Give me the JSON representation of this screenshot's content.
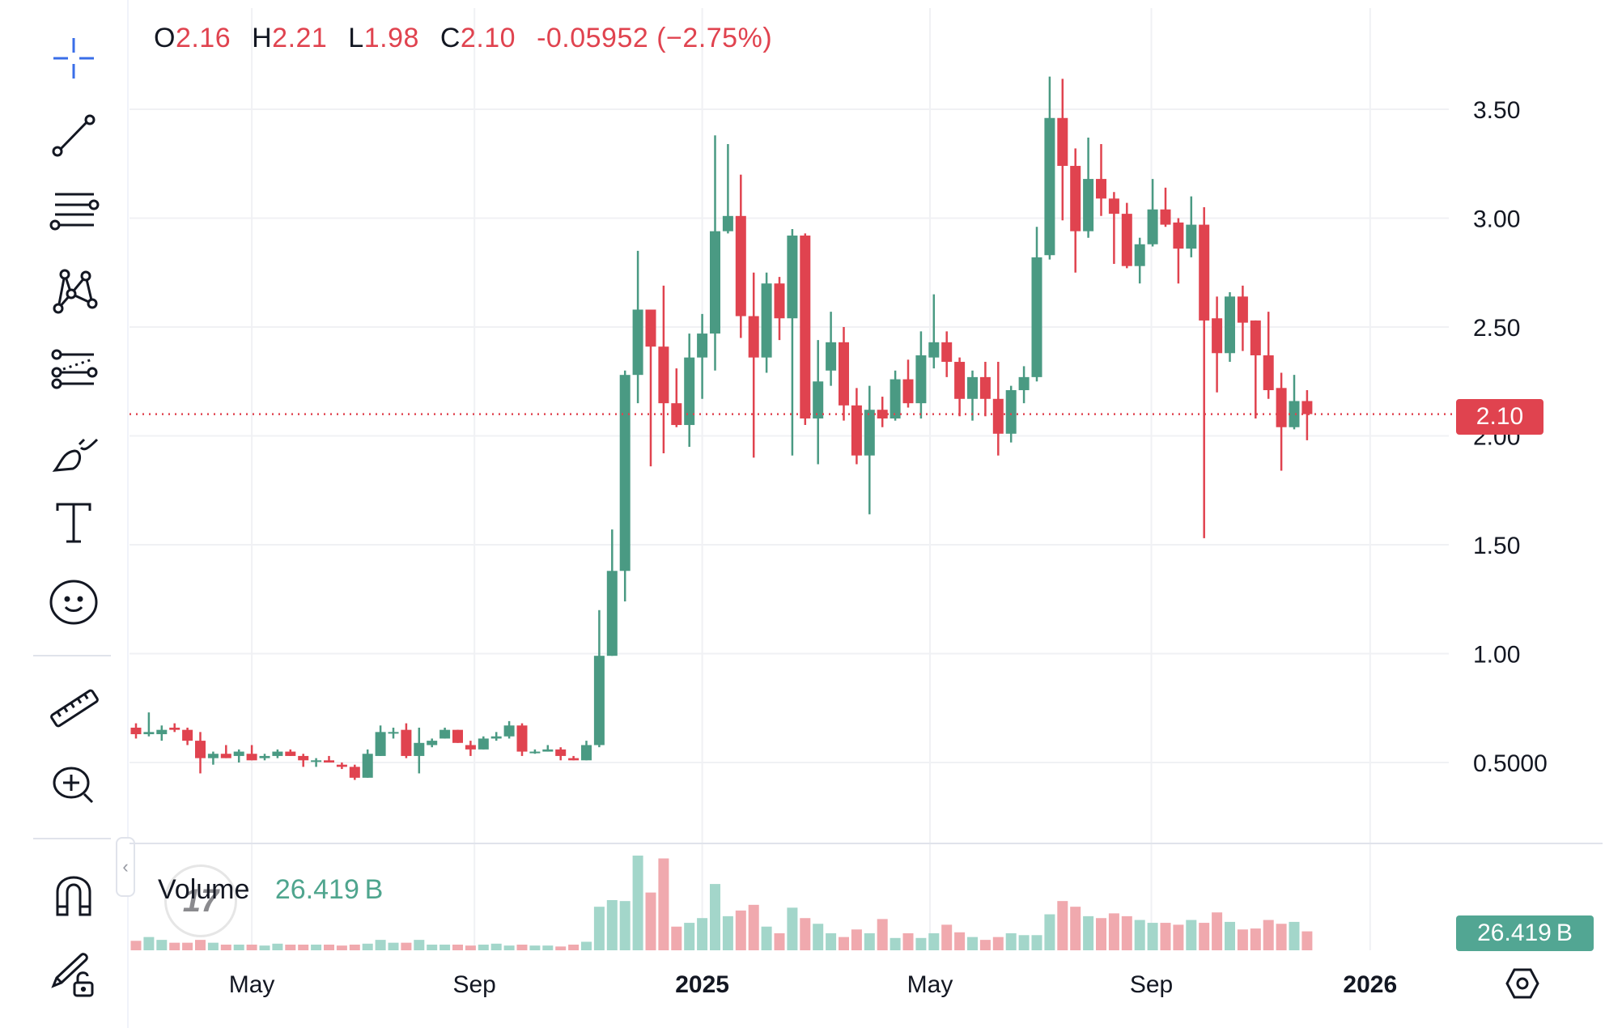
{
  "legend": {
    "open_label": "O",
    "open": "2.16",
    "high_label": "H",
    "high": "2.21",
    "low_label": "L",
    "low": "1.98",
    "close_label": "C",
    "close": "2.10",
    "change": "-0.05952 (−2.75%)"
  },
  "price_tag": "2.10",
  "volume": {
    "label": "Volume",
    "value": "26.419 B",
    "tag": "26.419 B"
  },
  "logo_text": "17",
  "collapse_glyph": "‹",
  "toolbar": {
    "tools": [
      {
        "name": "crosshair-icon",
        "active": true
      },
      {
        "name": "trend-line-icon"
      },
      {
        "name": "horizontal-lines-icon"
      },
      {
        "name": "pattern-icon"
      },
      {
        "name": "fib-retracement-icon"
      },
      {
        "name": "brush-icon"
      },
      {
        "name": "text-icon"
      },
      {
        "name": "emoji-icon"
      },
      {
        "name": "ruler-icon"
      },
      {
        "name": "zoom-in-icon"
      },
      {
        "name": "magnet-icon"
      },
      {
        "name": "lock-drawing-icon"
      }
    ]
  },
  "colors": {
    "up": "#4a9a83",
    "down": "#e0434f",
    "vol_up": "#a3d6ca",
    "vol_down": "#f0a9ae",
    "grid": "#f0f1f4",
    "accent": "#3a6ee8"
  },
  "chart_data": {
    "type": "candlestick",
    "title": "",
    "xlabel": "",
    "ylabel": "",
    "ylim": [
      0.35,
      3.7
    ],
    "y_ticks": [
      {
        "value": 3.5,
        "label": "3.50"
      },
      {
        "value": 3.0,
        "label": "3.00"
      },
      {
        "value": 2.5,
        "label": "2.50"
      },
      {
        "value": 2.0,
        "label": "2.00"
      },
      {
        "value": 1.5,
        "label": "1.50"
      },
      {
        "value": 1.0,
        "label": "1.00"
      },
      {
        "value": 0.5,
        "label": "0.5000"
      }
    ],
    "x_ticks": [
      {
        "index": 9,
        "label": "May",
        "bold": false
      },
      {
        "index": 26.3,
        "label": "Sep",
        "bold": false
      },
      {
        "index": 44,
        "label": "2025",
        "bold": true
      },
      {
        "index": 61.7,
        "label": "May",
        "bold": false
      },
      {
        "index": 78.9,
        "label": "Sep",
        "bold": false
      },
      {
        "index": 95.9,
        "label": "2026",
        "bold": true
      }
    ],
    "last_price": 2.1,
    "grid": true,
    "ohlc": [
      [
        0.66,
        0.68,
        0.61,
        0.63
      ],
      [
        0.63,
        0.73,
        0.62,
        0.64
      ],
      [
        0.63,
        0.67,
        0.6,
        0.65
      ],
      [
        0.66,
        0.68,
        0.64,
        0.65
      ],
      [
        0.65,
        0.66,
        0.58,
        0.6
      ],
      [
        0.6,
        0.64,
        0.45,
        0.52
      ],
      [
        0.52,
        0.55,
        0.49,
        0.54
      ],
      [
        0.54,
        0.58,
        0.52,
        0.52
      ],
      [
        0.53,
        0.56,
        0.5,
        0.55
      ],
      [
        0.54,
        0.58,
        0.51,
        0.51
      ],
      [
        0.52,
        0.54,
        0.51,
        0.53
      ],
      [
        0.53,
        0.56,
        0.52,
        0.55
      ],
      [
        0.55,
        0.56,
        0.53,
        0.53
      ],
      [
        0.53,
        0.54,
        0.48,
        0.51
      ],
      [
        0.51,
        0.52,
        0.48,
        0.51
      ],
      [
        0.51,
        0.53,
        0.5,
        0.5
      ],
      [
        0.49,
        0.5,
        0.47,
        0.48
      ],
      [
        0.48,
        0.49,
        0.42,
        0.43
      ],
      [
        0.43,
        0.56,
        0.43,
        0.54
      ],
      [
        0.53,
        0.67,
        0.53,
        0.64
      ],
      [
        0.64,
        0.66,
        0.61,
        0.64
      ],
      [
        0.65,
        0.68,
        0.52,
        0.53
      ],
      [
        0.53,
        0.66,
        0.45,
        0.59
      ],
      [
        0.58,
        0.61,
        0.57,
        0.6
      ],
      [
        0.61,
        0.66,
        0.61,
        0.65
      ],
      [
        0.65,
        0.65,
        0.59,
        0.59
      ],
      [
        0.58,
        0.6,
        0.53,
        0.56
      ],
      [
        0.56,
        0.62,
        0.56,
        0.61
      ],
      [
        0.61,
        0.64,
        0.6,
        0.62
      ],
      [
        0.62,
        0.69,
        0.61,
        0.67
      ],
      [
        0.67,
        0.68,
        0.53,
        0.55
      ],
      [
        0.55,
        0.56,
        0.54,
        0.55
      ],
      [
        0.55,
        0.58,
        0.55,
        0.56
      ],
      [
        0.56,
        0.57,
        0.51,
        0.53
      ],
      [
        0.52,
        0.53,
        0.51,
        0.51
      ],
      [
        0.51,
        0.6,
        0.51,
        0.58
      ],
      [
        0.58,
        1.2,
        0.57,
        0.99
      ],
      [
        0.99,
        1.57,
        0.99,
        1.38
      ],
      [
        1.38,
        2.3,
        1.24,
        2.28
      ],
      [
        2.28,
        2.85,
        2.15,
        2.58
      ],
      [
        2.58,
        2.58,
        1.86,
        2.41
      ],
      [
        2.41,
        2.69,
        1.92,
        2.15
      ],
      [
        2.15,
        2.31,
        2.04,
        2.05
      ],
      [
        2.05,
        2.47,
        1.95,
        2.36
      ],
      [
        2.36,
        2.56,
        2.17,
        2.47
      ],
      [
        2.47,
        3.38,
        2.3,
        2.94
      ],
      [
        2.94,
        3.34,
        2.93,
        3.01
      ],
      [
        3.01,
        3.2,
        2.45,
        2.55
      ],
      [
        2.55,
        2.75,
        1.9,
        2.36
      ],
      [
        2.36,
        2.75,
        2.29,
        2.7
      ],
      [
        2.7,
        2.73,
        2.44,
        2.54
      ],
      [
        2.54,
        2.95,
        1.91,
        2.92
      ],
      [
        2.92,
        2.93,
        2.05,
        2.08
      ],
      [
        2.08,
        2.44,
        1.87,
        2.25
      ],
      [
        2.3,
        2.57,
        2.23,
        2.43
      ],
      [
        2.43,
        2.5,
        2.07,
        2.14
      ],
      [
        2.14,
        2.22,
        1.87,
        1.91
      ],
      [
        1.91,
        2.23,
        1.64,
        2.12
      ],
      [
        2.12,
        2.18,
        2.04,
        2.08
      ],
      [
        2.08,
        2.3,
        2.07,
        2.26
      ],
      [
        2.26,
        2.35,
        2.13,
        2.15
      ],
      [
        2.15,
        2.48,
        2.08,
        2.37
      ],
      [
        2.36,
        2.65,
        2.31,
        2.43
      ],
      [
        2.43,
        2.48,
        2.27,
        2.34
      ],
      [
        2.34,
        2.36,
        2.09,
        2.17
      ],
      [
        2.17,
        2.3,
        2.07,
        2.27
      ],
      [
        2.27,
        2.34,
        2.09,
        2.17
      ],
      [
        2.17,
        2.34,
        1.91,
        2.01
      ],
      [
        2.01,
        2.23,
        1.97,
        2.21
      ],
      [
        2.21,
        2.32,
        2.15,
        2.27
      ],
      [
        2.27,
        2.96,
        2.25,
        2.82
      ],
      [
        2.83,
        3.65,
        2.81,
        3.46
      ],
      [
        3.46,
        3.64,
        2.99,
        3.24
      ],
      [
        3.24,
        3.32,
        2.75,
        2.94
      ],
      [
        2.94,
        3.37,
        2.91,
        3.18
      ],
      [
        3.18,
        3.34,
        3.01,
        3.09
      ],
      [
        3.09,
        3.12,
        2.79,
        3.02
      ],
      [
        3.02,
        3.07,
        2.77,
        2.78
      ],
      [
        2.78,
        2.91,
        2.7,
        2.88
      ],
      [
        2.88,
        3.18,
        2.87,
        3.04
      ],
      [
        3.04,
        3.14,
        2.96,
        2.97
      ],
      [
        2.98,
        3.0,
        2.7,
        2.86
      ],
      [
        2.86,
        3.1,
        2.82,
        2.97
      ],
      [
        2.97,
        3.05,
        1.53,
        2.53
      ],
      [
        2.54,
        2.64,
        2.2,
        2.38
      ],
      [
        2.38,
        2.66,
        2.34,
        2.64
      ],
      [
        2.64,
        2.69,
        2.39,
        2.52
      ],
      [
        2.53,
        2.53,
        2.08,
        2.37
      ],
      [
        2.37,
        2.57,
        2.17,
        2.21
      ],
      [
        2.22,
        2.29,
        1.84,
        2.04
      ],
      [
        2.04,
        2.28,
        2.03,
        2.16
      ],
      [
        2.16,
        2.21,
        1.98,
        2.1
      ]
    ],
    "volume_relative": [
      10,
      14,
      11,
      8,
      8,
      11,
      8,
      6,
      6,
      6,
      5,
      7,
      6,
      6,
      6,
      6,
      5,
      6,
      7,
      11,
      8,
      8,
      11,
      6,
      6,
      6,
      5,
      6,
      7,
      5,
      6,
      5,
      5,
      4,
      6,
      9,
      46,
      53,
      52,
      100,
      61,
      97,
      25,
      29,
      34,
      70,
      36,
      42,
      48,
      25,
      18,
      45,
      34,
      28,
      18,
      14,
      22,
      18,
      33,
      13,
      18,
      13,
      18,
      27,
      19,
      14,
      11,
      14,
      18,
      16,
      16,
      38,
      52,
      46,
      36,
      34,
      39,
      36,
      32,
      29,
      29,
      27,
      32,
      29,
      40,
      30,
      22,
      23,
      32,
      28,
      30,
      20
    ],
    "last_volume": "26.419B"
  }
}
